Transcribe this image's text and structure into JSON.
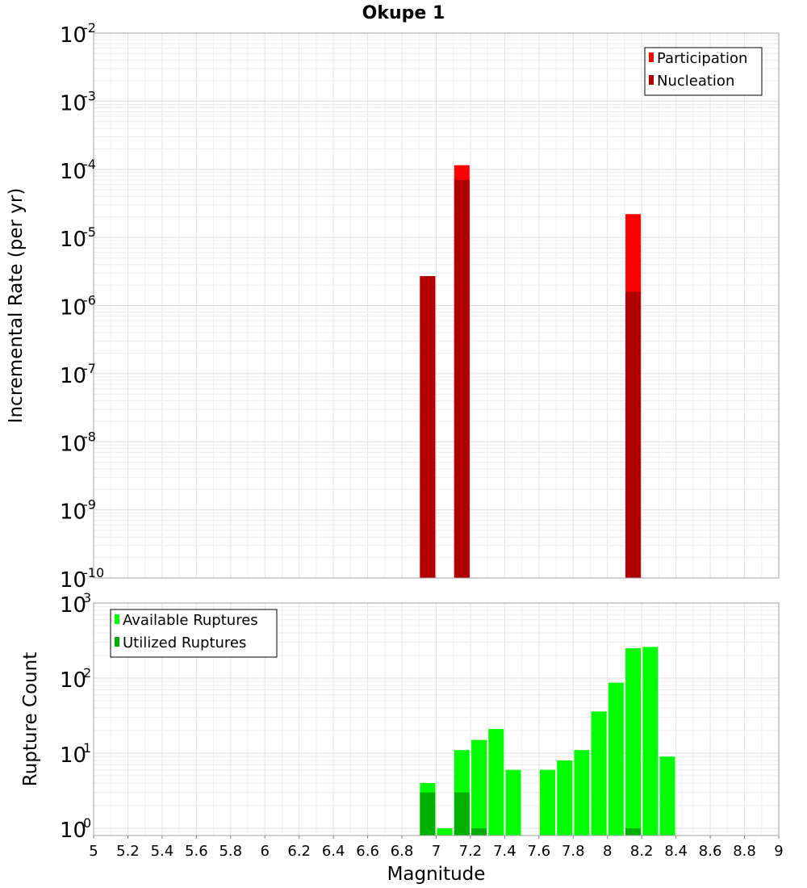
{
  "chart_data": [
    {
      "type": "bar",
      "title": "Okupe 1",
      "ylabel": "Incremental Rate (per yr)",
      "xlim": [
        5,
        9
      ],
      "ylim": [
        1e-10,
        0.01
      ],
      "yscale": "log",
      "grid": true,
      "legend_position": "top-right",
      "y_ticks": [
        {
          "base": "10",
          "exp": "-10"
        },
        {
          "base": "10",
          "exp": "-9"
        },
        {
          "base": "10",
          "exp": "-8"
        },
        {
          "base": "10",
          "exp": "-7"
        },
        {
          "base": "10",
          "exp": "-6"
        },
        {
          "base": "10",
          "exp": "-5"
        },
        {
          "base": "10",
          "exp": "-4"
        },
        {
          "base": "10",
          "exp": "-3"
        },
        {
          "base": "10",
          "exp": "-2"
        }
      ],
      "series": [
        {
          "name": "Participation",
          "color": "#ff0000",
          "x": [
            6.95,
            7.15,
            8.15
          ],
          "values": [
            2.7e-06,
            0.000115,
            2.2e-05
          ]
        },
        {
          "name": "Nucleation",
          "color": "#b00000",
          "x": [
            6.95,
            7.15,
            8.15
          ],
          "values": [
            2.7e-06,
            7e-05,
            1.6e-06
          ]
        }
      ]
    },
    {
      "type": "bar",
      "xlabel": "Magnitude",
      "ylabel": "Rupture Count",
      "xlim": [
        5,
        9
      ],
      "ylim": [
        0.8,
        1000
      ],
      "yscale": "log",
      "grid": true,
      "legend_position": "top-left",
      "x_ticks": [
        "5",
        "5.2",
        "5.4",
        "5.6",
        "5.8",
        "6",
        "6.2",
        "6.4",
        "6.6",
        "6.8",
        "7",
        "7.2",
        "7.4",
        "7.6",
        "7.8",
        "8",
        "8.2",
        "8.4",
        "8.6",
        "8.8",
        "9"
      ],
      "y_ticks": [
        {
          "base": "10",
          "exp": "0"
        },
        {
          "base": "10",
          "exp": "1"
        },
        {
          "base": "10",
          "exp": "2"
        },
        {
          "base": "10",
          "exp": "3"
        }
      ],
      "series": [
        {
          "name": "Available Ruptures",
          "color": "#00ff00",
          "x": [
            6.95,
            7.05,
            7.15,
            7.25,
            7.35,
            7.45,
            7.65,
            7.75,
            7.85,
            7.95,
            8.05,
            8.15,
            8.25,
            8.35
          ],
          "values": [
            4,
            1,
            11,
            15,
            21,
            6,
            6,
            8,
            11,
            36,
            87,
            250,
            260,
            9
          ]
        },
        {
          "name": "Utilized Ruptures",
          "color": "#00b000",
          "x": [
            6.95,
            7.15,
            7.25,
            8.15
          ],
          "values": [
            3,
            3,
            1,
            1
          ]
        }
      ]
    }
  ]
}
